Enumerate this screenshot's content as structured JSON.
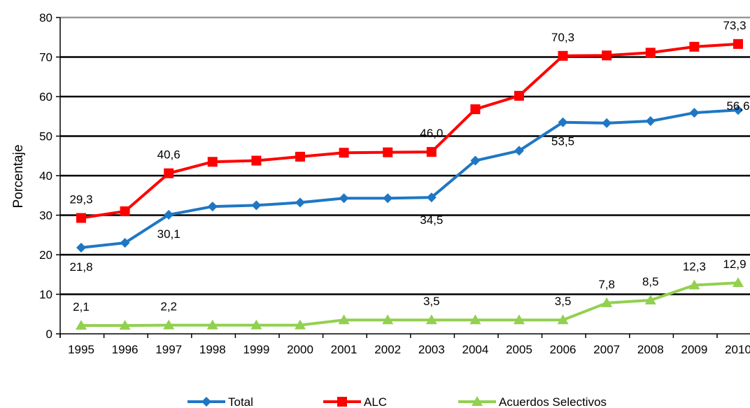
{
  "chart_data": {
    "type": "line",
    "title": "",
    "xlabel": "",
    "ylabel": "Porcentaje",
    "categories": [
      "1995",
      "1996",
      "1997",
      "1998",
      "1999",
      "2000",
      "2001",
      "2002",
      "2003",
      "2004",
      "2005",
      "2006",
      "2007",
      "2008",
      "2009",
      "2010"
    ],
    "ylim": [
      0,
      80
    ],
    "yticks": [
      0,
      10,
      20,
      30,
      40,
      50,
      60,
      70,
      80
    ],
    "grid": true,
    "legend_position": "bottom",
    "series": [
      {
        "name": "Total",
        "color": "#1F77C4",
        "marker": "diamond",
        "values": [
          21.8,
          23.0,
          30.1,
          32.2,
          32.5,
          33.2,
          34.3,
          34.3,
          34.5,
          43.8,
          46.3,
          53.5,
          53.3,
          53.8,
          55.9,
          56.6
        ],
        "labels": [
          {
            "index": 0,
            "text": "21,8"
          },
          {
            "index": 2,
            "text": "30,1"
          },
          {
            "index": 8,
            "text": "34,5"
          },
          {
            "index": 11,
            "text": "53,5"
          },
          {
            "index": 15,
            "text": "56,6"
          }
        ]
      },
      {
        "name": "ALC",
        "color": "#FF0000",
        "marker": "square",
        "values": [
          29.3,
          31.0,
          40.6,
          43.5,
          43.8,
          44.8,
          45.8,
          45.9,
          46.0,
          56.8,
          60.2,
          70.3,
          70.4,
          71.1,
          72.6,
          73.3
        ],
        "labels": [
          {
            "index": 0,
            "text": "29,3"
          },
          {
            "index": 2,
            "text": "40,6"
          },
          {
            "index": 8,
            "text": "46,0"
          },
          {
            "index": 11,
            "text": "70,3"
          },
          {
            "index": 15,
            "text": "73,3"
          }
        ]
      },
      {
        "name": "Acuerdos Selectivos",
        "color": "#92D050",
        "marker": "triangle",
        "values": [
          2.1,
          2.1,
          2.2,
          2.2,
          2.2,
          2.2,
          3.5,
          3.5,
          3.5,
          3.5,
          3.5,
          3.5,
          7.8,
          8.5,
          12.3,
          12.9
        ],
        "labels": [
          {
            "index": 0,
            "text": "2,1"
          },
          {
            "index": 2,
            "text": "2,2"
          },
          {
            "index": 8,
            "text": "3,5"
          },
          {
            "index": 11,
            "text": "3,5"
          },
          {
            "index": 12,
            "text": "7,8"
          },
          {
            "index": 13,
            "text": "8,5"
          },
          {
            "index": 14,
            "text": "12,3"
          },
          {
            "index": 15,
            "text": "12,9"
          }
        ]
      }
    ]
  }
}
